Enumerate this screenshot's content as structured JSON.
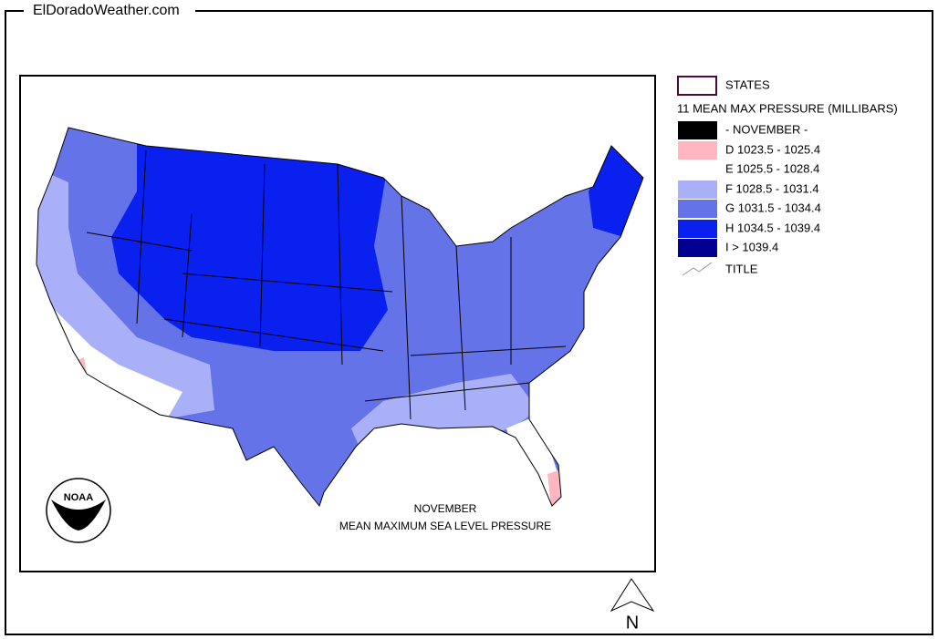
{
  "site": "ElDoradoWeather.com",
  "legend": {
    "states": "STATES",
    "title": "11 MEAN MAX PRESSURE (MILLIBARS)",
    "items": [
      {
        "label": "- NOVEMBER -",
        "color": "#000000"
      },
      {
        "label": "D 1023.5 - 1025.4",
        "color": "#ffb6c1"
      },
      {
        "label": "E 1025.5 - 1028.4",
        "color": "#ffffff"
      },
      {
        "label": "F 1028.5 - 1031.4",
        "color": "#aab0f8"
      },
      {
        "label": "G 1031.5 - 1034.4",
        "color": "#6474e8"
      },
      {
        "label": "H 1034.5 - 1039.4",
        "color": "#0a20ee"
      },
      {
        "label": "I > 1039.4",
        "color": "#000090"
      }
    ],
    "title_entry": "TITLE"
  },
  "map": {
    "caption_line1": "NOVEMBER",
    "caption_line2": "MEAN MAXIMUM SEA LEVEL PRESSURE",
    "logo": "NOAA",
    "north": "N"
  }
}
